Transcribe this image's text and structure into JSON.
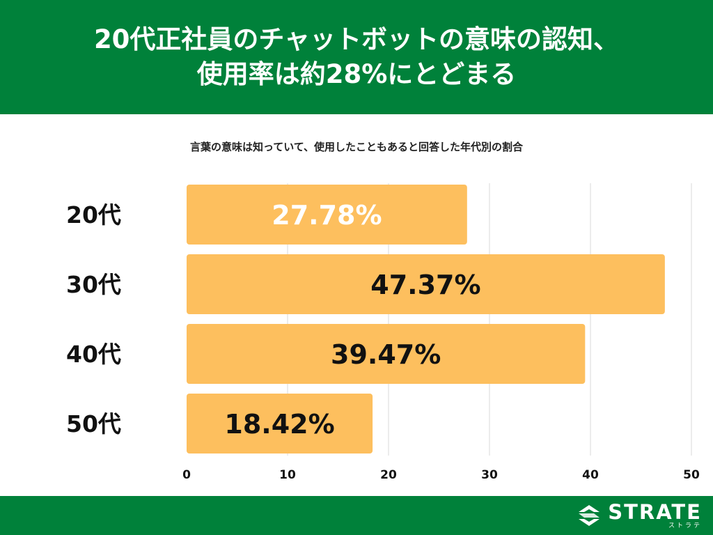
{
  "header": {
    "title_line1": "20代正社員のチャットボットの意味の認知、",
    "title_line2": "使用率は約28%にとどまる"
  },
  "colors": {
    "header_bg": "#00813a",
    "bar": "#fdbf5e",
    "grid": "#d9d9d9",
    "label_dark": "#111111",
    "label_light": "#ffffff"
  },
  "chart_data": {
    "type": "bar",
    "orientation": "horizontal",
    "subtitle": "言葉の意味は知っていて、使用したこともあると回答した年代別の割合",
    "categories": [
      "20代",
      "30代",
      "40代",
      "50代"
    ],
    "values": [
      27.78,
      47.37,
      39.47,
      18.42
    ],
    "data_labels": [
      "27.78%",
      "47.37%",
      "39.47%",
      "18.42%"
    ],
    "xlim": [
      0,
      50
    ],
    "xticks": [
      0,
      10,
      20,
      30,
      40,
      50
    ],
    "grid": true,
    "legend": "none"
  },
  "footer": {
    "logo_icon": "strate-s-icon",
    "logo_text": "STRATE",
    "logo_subtext": "ストラテ"
  }
}
